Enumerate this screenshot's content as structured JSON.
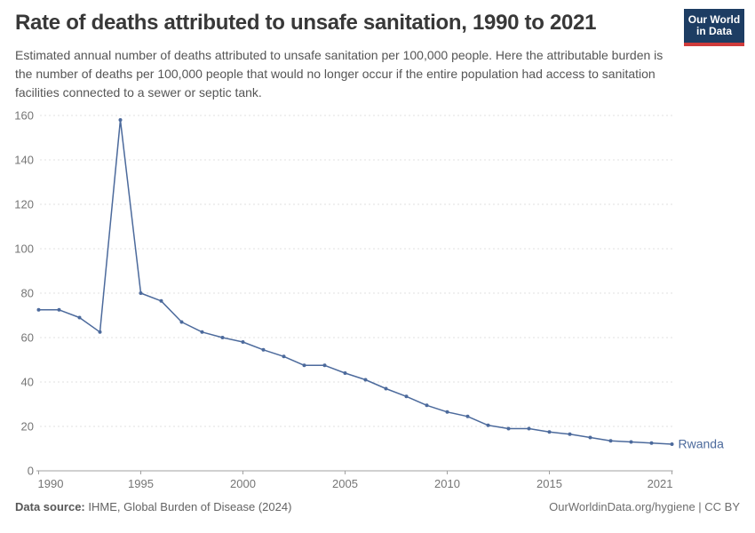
{
  "header": {
    "title": "Rate of deaths attributed to unsafe sanitation, 1990 to 2021",
    "subtitle": "Estimated annual number of deaths attributed to unsafe sanitation per 100,000 people. Here the attributable burden is the number of deaths per 100,000 people that would no longer occur if the entire population had access to sanitation facilities connected to a sewer or septic tank.",
    "logo": {
      "line1": "Our World",
      "line2": "in Data"
    }
  },
  "chart_data": {
    "type": "line",
    "title": "Rate of deaths attributed to unsafe sanitation, 1990 to 2021",
    "xlabel": "",
    "ylabel": "",
    "xlim": [
      1990,
      2021
    ],
    "ylim": [
      0,
      160
    ],
    "yticks": [
      0,
      20,
      40,
      60,
      80,
      100,
      120,
      140,
      160
    ],
    "xticks": [
      1990,
      1995,
      2000,
      2005,
      2010,
      2015,
      2021
    ],
    "grid": "horizontal-dashed",
    "legend_position": "end-of-line-label",
    "x": [
      1990,
      1991,
      1992,
      1993,
      1994,
      1995,
      1996,
      1997,
      1998,
      1999,
      2000,
      2001,
      2002,
      2003,
      2004,
      2005,
      2006,
      2007,
      2008,
      2009,
      2010,
      2011,
      2012,
      2013,
      2014,
      2015,
      2016,
      2017,
      2018,
      2019,
      2020,
      2021
    ],
    "series": [
      {
        "name": "Rwanda",
        "color": "#4C6A9C",
        "values": [
          72.5,
          72.5,
          69,
          62.5,
          158,
          80,
          76.5,
          67,
          62.5,
          60,
          58,
          54.5,
          51.5,
          47.5,
          47.5,
          44,
          41,
          37,
          33.5,
          29.5,
          26.5,
          24.5,
          20.5,
          19,
          19,
          17.5,
          16.5,
          15,
          13.5,
          13,
          12.5,
          12
        ]
      }
    ]
  },
  "footer": {
    "source_label": "Data source:",
    "source_value": " IHME, Global Burden of Disease (2024)",
    "credit": "OurWorldinData.org/hygiene | CC BY"
  },
  "colors": {
    "line": "#4C6A9C",
    "grid": "#e0e0e0",
    "axis": "#a0a0a0",
    "tick_label": "#757575",
    "entity_label": "#4C6A9C",
    "logo_bg": "#1d3d63",
    "logo_accent": "#cf3b3b",
    "background": "#ffffff"
  }
}
